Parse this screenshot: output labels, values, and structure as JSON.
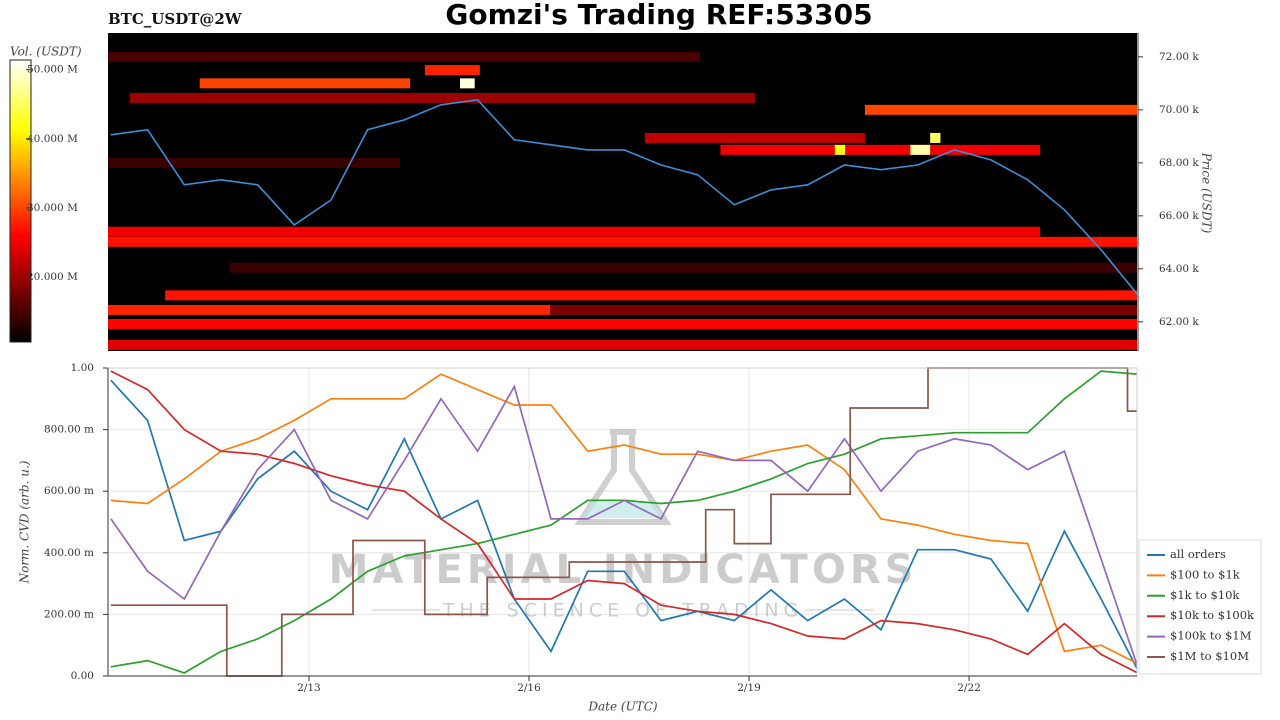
{
  "chart_data": [
    {
      "type": "heatmap",
      "title": "Gomzi's Trading REF:53305",
      "subtitle": "BTC_USDT@2W",
      "colorbar_label": "Vol. (USDT)",
      "zlim": [
        10600000,
        51400000
      ],
      "zticks": [
        {
          "value": 20000000,
          "label": "20.000 M"
        },
        {
          "value": 30000000,
          "label": "30.000 M"
        },
        {
          "value": 40000000,
          "label": "40.000 M"
        },
        {
          "value": 50000000,
          "label": "50.000 M"
        }
      ],
      "ylabel": "Price (USDT)",
      "ylim": [
        60900,
        72900
      ],
      "yticks": [
        {
          "value": 62000,
          "label": "62.00 k"
        },
        {
          "value": 64000,
          "label": "64.00 k"
        },
        {
          "value": 66000,
          "label": "66.00 k"
        },
        {
          "value": 68000,
          "label": "68.00 k"
        },
        {
          "value": 70000,
          "label": "70.00 k"
        },
        {
          "value": 72000,
          "label": "72.00 k"
        }
      ],
      "xlim": [
        10.26,
        24.29
      ],
      "heat": [
        {
          "price": 72000,
          "x0": 10.26,
          "x1": 18.33,
          "volume": 15000000
        },
        {
          "price": 71500,
          "x0": 14.58,
          "x1": 15.33,
          "volume": 28000000
        },
        {
          "price": 71000,
          "x0": 11.51,
          "x1": 14.38,
          "volume": 30000000
        },
        {
          "price": 70450,
          "x0": 10.56,
          "x1": 19.08,
          "volume": 20000000
        },
        {
          "price": 70000,
          "x0": 20.58,
          "x1": 24.29,
          "volume": 30000000
        },
        {
          "price": 68940,
          "x0": 17.58,
          "x1": 20.58,
          "volume": 22000000
        },
        {
          "price": 68490,
          "x0": 18.61,
          "x1": 22.97,
          "volume": 25000000
        },
        {
          "price": 68000,
          "x0": 10.26,
          "x1": 14.24,
          "volume": 14000000
        },
        {
          "price": 65400,
          "x0": 10.26,
          "x1": 22.97,
          "volume": 25000000
        },
        {
          "price": 65020,
          "x0": 10.26,
          "x1": 24.29,
          "volume": 27000000
        },
        {
          "price": 64040,
          "x0": 11.92,
          "x1": 24.29,
          "volume": 14000000
        },
        {
          "price": 63000,
          "x0": 11.04,
          "x1": 24.29,
          "volume": 27000000
        },
        {
          "price": 62450,
          "x0": 10.26,
          "x1": 16.29,
          "volume": 28000000
        },
        {
          "price": 62450,
          "x0": 16.29,
          "x1": 24.29,
          "volume": 18000000
        },
        {
          "price": 61920,
          "x0": 10.26,
          "x1": 24.29,
          "volume": 26000000
        },
        {
          "price": 61130,
          "x0": 10.26,
          "x1": 24.29,
          "volume": 24000000
        },
        {
          "price": 71000,
          "x0": 15.06,
          "x1": 15.26,
          "volume": 50000000
        },
        {
          "price": 68940,
          "x0": 21.47,
          "x1": 21.61,
          "volume": 45000000
        },
        {
          "price": 68490,
          "x0": 21.2,
          "x1": 21.47,
          "volume": 48000000
        },
        {
          "price": 68490,
          "x0": 20.17,
          "x1": 20.31,
          "volume": 42000000
        }
      ],
      "line": {
        "color": "#3a8fd6",
        "x": [
          10.3,
          10.8,
          11.3,
          11.8,
          12.3,
          12.8,
          13.3,
          13.8,
          14.3,
          14.8,
          15.3,
          15.8,
          16.3,
          16.8,
          17.3,
          17.8,
          18.3,
          18.8,
          19.3,
          19.8,
          20.3,
          20.8,
          21.3,
          21.8,
          22.3,
          22.8,
          23.3,
          23.8,
          24.3
        ],
        "values": [
          69060,
          69250,
          67170,
          67360,
          67170,
          65660,
          66600,
          69250,
          69620,
          70190,
          70380,
          68870,
          68680,
          68490,
          68490,
          67920,
          67550,
          66420,
          66980,
          67170,
          67920,
          67740,
          67920,
          68490,
          68110,
          67360,
          66230,
          64720,
          63020
        ]
      }
    },
    {
      "type": "line",
      "xlabel": "Date (UTC)",
      "ylabel": "Norm. CVD (arb. u.)",
      "grid": true,
      "legend": "right",
      "watermark": {
        "title": "MATERIAL INDICATORS",
        "subtitle": "THE SCIENCE OF TRADING"
      },
      "xlim": [
        10.26,
        24.29
      ],
      "xticks": [
        {
          "value": 13,
          "label": "2/13"
        },
        {
          "value": 16,
          "label": "2/16"
        },
        {
          "value": 19,
          "label": "2/19"
        },
        {
          "value": 22,
          "label": "2/22"
        }
      ],
      "ylim": [
        0,
        1
      ],
      "yticks": [
        {
          "value": 0,
          "label": "0.00"
        },
        {
          "value": 0.2,
          "label": "200.00 m"
        },
        {
          "value": 0.4,
          "label": "400.00 m"
        },
        {
          "value": 0.6,
          "label": "600.00 m"
        },
        {
          "value": 0.8,
          "label": "800.00 m"
        },
        {
          "value": 1,
          "label": "1.00"
        }
      ],
      "x": [
        10.3,
        10.8,
        11.3,
        11.8,
        12.3,
        12.8,
        13.3,
        13.8,
        14.3,
        14.8,
        15.3,
        15.8,
        16.3,
        16.8,
        17.3,
        17.8,
        18.3,
        18.8,
        19.3,
        19.8,
        20.3,
        20.8,
        21.3,
        21.8,
        22.3,
        22.8,
        23.3,
        23.8,
        24.3
      ],
      "series": [
        {
          "name": "all orders",
          "color": "#1f77b4",
          "values": [
            0.96,
            0.83,
            0.44,
            0.47,
            0.64,
            0.73,
            0.6,
            0.54,
            0.77,
            0.51,
            0.57,
            0.25,
            0.08,
            0.34,
            0.34,
            0.18,
            0.21,
            0.18,
            0.28,
            0.18,
            0.25,
            0.15,
            0.41,
            0.41,
            0.38,
            0.21,
            0.47,
            0.25,
            0.02
          ]
        },
        {
          "name": "$100 to $1k",
          "color": "#ff7f0e",
          "values": [
            0.57,
            0.56,
            0.64,
            0.73,
            0.77,
            0.83,
            0.9,
            0.9,
            0.9,
            0.98,
            0.93,
            0.88,
            0.88,
            0.73,
            0.75,
            0.72,
            0.72,
            0.7,
            0.73,
            0.75,
            0.67,
            0.51,
            0.49,
            0.46,
            0.44,
            0.43,
            0.08,
            0.1,
            0.04
          ]
        },
        {
          "name": "$1k to $10k",
          "color": "#2ca02c",
          "values": [
            0.03,
            0.05,
            0.01,
            0.08,
            0.12,
            0.18,
            0.25,
            0.34,
            0.39,
            0.41,
            0.43,
            0.46,
            0.49,
            0.57,
            0.57,
            0.56,
            0.57,
            0.6,
            0.64,
            0.69,
            0.72,
            0.77,
            0.78,
            0.79,
            0.79,
            0.79,
            0.9,
            0.99,
            0.98
          ]
        },
        {
          "name": "$10k to $100k",
          "color": "#d62728",
          "values": [
            0.99,
            0.93,
            0.8,
            0.73,
            0.72,
            0.69,
            0.65,
            0.62,
            0.6,
            0.51,
            0.43,
            0.25,
            0.25,
            0.31,
            0.3,
            0.23,
            0.21,
            0.2,
            0.17,
            0.13,
            0.12,
            0.18,
            0.17,
            0.15,
            0.12,
            0.07,
            0.17,
            0.07,
            0.01
          ]
        },
        {
          "name": "$100k to $1M",
          "color": "#9467bd",
          "values": [
            0.51,
            0.34,
            0.25,
            0.47,
            0.67,
            0.8,
            0.57,
            0.51,
            0.7,
            0.9,
            0.73,
            0.94,
            0.51,
            0.51,
            0.57,
            0.51,
            0.73,
            0.7,
            0.7,
            0.6,
            0.77,
            0.6,
            0.73,
            0.77,
            0.75,
            0.67,
            0.73,
            0.38,
            0.03
          ]
        },
        {
          "name": "$1M to $10M",
          "color": "#8c564b",
          "step": true,
          "x": [
            10.3,
            11.88,
            12.63,
            13.6,
            14.58,
            15.43,
            16.55,
            18.41,
            18.8,
            19.3,
            20.38,
            21.44,
            24.16,
            24.3
          ],
          "values": [
            0.23,
            0,
            0.2,
            0.44,
            0.2,
            0.32,
            0.37,
            0.54,
            0.43,
            0.59,
            0.87,
            1,
            0.86,
            0.86
          ]
        }
      ]
    }
  ]
}
